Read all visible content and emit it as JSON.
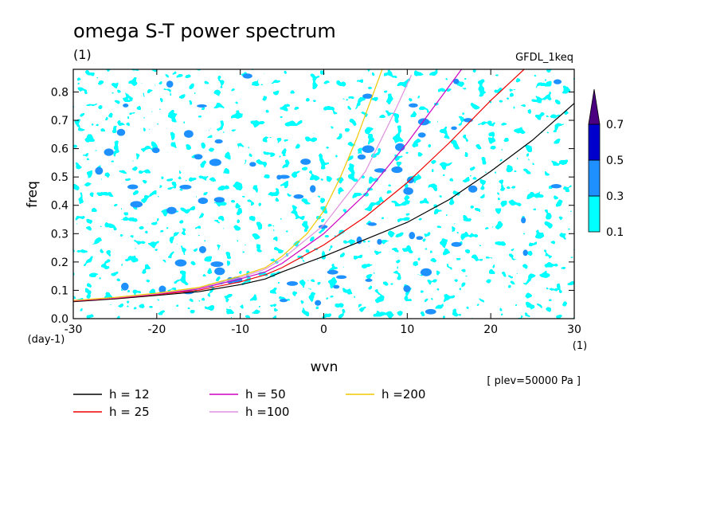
{
  "chart_data": {
    "type": "contour",
    "title": "omega S-T power spectrum",
    "subtitle": "(1)",
    "model_label": "GFDL_1keq",
    "xlabel": "wvn",
    "ylabel": "freq",
    "x_unit": "(1)",
    "y_unit": "(day-1)",
    "xlim": [
      -30,
      30
    ],
    "ylim": [
      0,
      0.88
    ],
    "x_ticks": [
      -30,
      -20,
      -10,
      0,
      10,
      20,
      30
    ],
    "y_ticks": [
      0.0,
      0.1,
      0.2,
      0.3,
      0.4,
      0.5,
      0.6,
      0.7,
      0.8
    ],
    "x_tick_labels": [
      "-30",
      "-20",
      "-10",
      "0",
      "10",
      "20",
      "30"
    ],
    "y_tick_labels": [
      "0.0",
      "0.1",
      "0.2",
      "0.3",
      "0.4",
      "0.5",
      "0.6",
      "0.7",
      "0.8"
    ],
    "annotation": "[ plev=50000 Pa ]",
    "colorbar": {
      "levels": [
        0.1,
        0.3,
        0.5,
        0.7
      ],
      "labels": [
        "0.1",
        "0.3",
        "0.5",
        "0.7"
      ],
      "colors": [
        "#00ffff",
        "#1e90ff",
        "#0000cd",
        "#4b0082"
      ]
    },
    "series": [
      {
        "name": "h = 12",
        "color": "#000000",
        "x": [
          -30,
          -25,
          -20,
          -15,
          -10,
          -7,
          -5,
          0,
          5,
          10,
          15,
          20,
          25,
          30
        ],
        "y": [
          0.06,
          0.07,
          0.082,
          0.095,
          0.12,
          0.14,
          0.165,
          0.22,
          0.28,
          0.34,
          0.42,
          0.52,
          0.63,
          0.76
        ]
      },
      {
        "name": "h = 25",
        "color": "#ee0000",
        "x": [
          -30,
          -25,
          -20,
          -15,
          -10,
          -7,
          -5,
          0,
          5,
          10,
          15,
          20,
          24
        ],
        "y": [
          0.062,
          0.072,
          0.085,
          0.1,
          0.13,
          0.155,
          0.18,
          0.26,
          0.36,
          0.48,
          0.62,
          0.77,
          0.88
        ]
      },
      {
        "name": "h = 50",
        "color": "#d000c0",
        "x": [
          -30,
          -25,
          -20,
          -15,
          -10,
          -7,
          -5,
          0,
          5,
          10,
          14,
          16.5
        ],
        "y": [
          0.063,
          0.073,
          0.087,
          0.105,
          0.14,
          0.165,
          0.195,
          0.3,
          0.44,
          0.62,
          0.78,
          0.88
        ]
      },
      {
        "name": "h =100",
        "color": "#e090e0",
        "x": [
          -30,
          -25,
          -20,
          -15,
          -10,
          -7,
          -5,
          0,
          5,
          8,
          10.5
        ],
        "y": [
          0.064,
          0.074,
          0.088,
          0.108,
          0.145,
          0.175,
          0.21,
          0.33,
          0.52,
          0.7,
          0.86
        ]
      },
      {
        "name": "h =200",
        "color": "#f0c800",
        "x": [
          -30,
          -25,
          -20,
          -15,
          -10,
          -7,
          -5,
          -2,
          0,
          2,
          4,
          6,
          7
        ],
        "y": [
          0.064,
          0.075,
          0.09,
          0.11,
          0.15,
          0.18,
          0.22,
          0.3,
          0.38,
          0.5,
          0.64,
          0.8,
          0.88
        ]
      }
    ]
  }
}
